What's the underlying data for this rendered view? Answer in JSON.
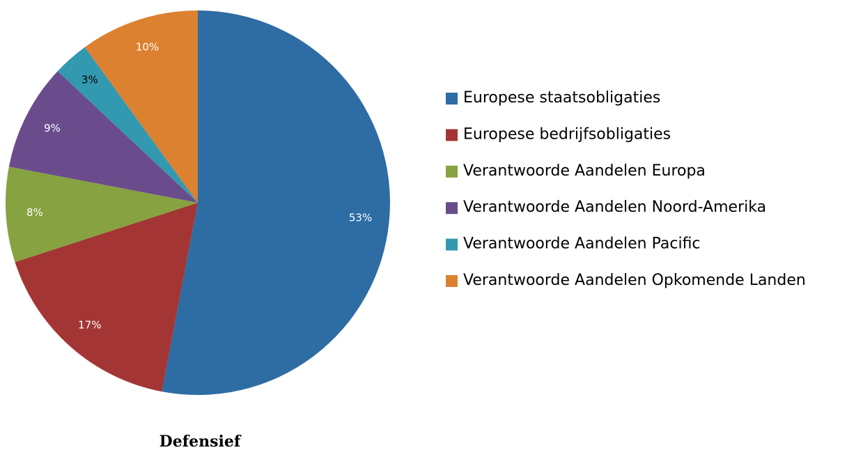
{
  "chart_data": {
    "type": "pie",
    "title": "Defensief",
    "categories": [
      "Europese staatsobligaties",
      "Europese bedrijfsobligaties",
      "Verantwoorde Aandelen Europa",
      "Verantwoorde Aandelen Noord-Amerika",
      "Verantwoorde Aandelen Pacific",
      "Verantwoorde Aandelen Opkomende Landen"
    ],
    "values": [
      53,
      17,
      8,
      9,
      3,
      10
    ],
    "value_labels": [
      "53%",
      "17%",
      "8%",
      "9%",
      "3%",
      "10%"
    ],
    "colors": [
      "#2e6ca4",
      "#a33634",
      "#86a241",
      "#6a4c8c",
      "#3399b0",
      "#dc8130"
    ],
    "label_colors": [
      "#ffffff",
      "#ffffff",
      "#ffffff",
      "#ffffff",
      "#000000",
      "#ffffff"
    ],
    "legend": "right"
  }
}
